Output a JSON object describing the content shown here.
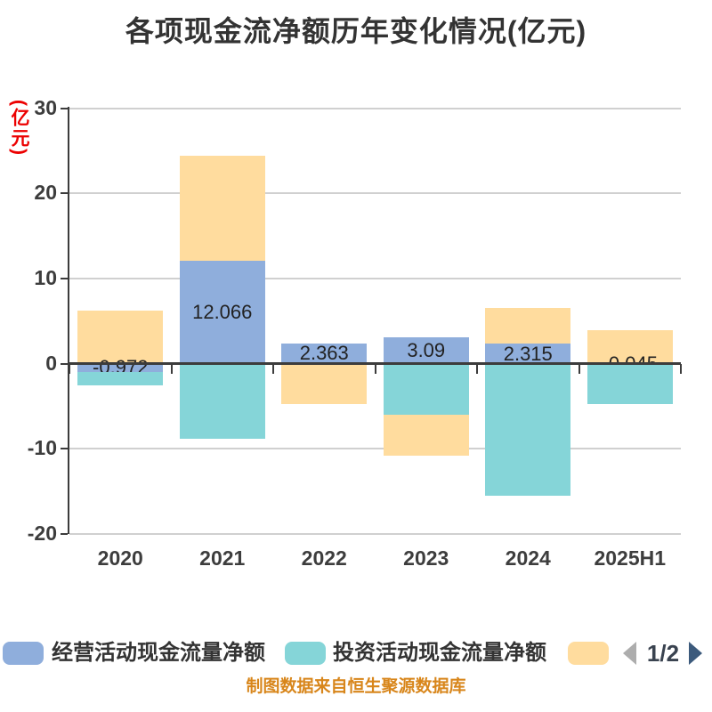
{
  "title": "各项现金流净额历年变化情况(亿元)",
  "y_axis_unit": "(亿元)",
  "footer_note": "制图数据来自恒生聚源数据库",
  "legend": {
    "items": [
      {
        "id": "operating-blue",
        "label": "经营活动现金流量净额",
        "color": "#8FAEDC"
      },
      {
        "id": "investing-teal",
        "label": "投资活动现金流量净额",
        "color": "#85D5D8"
      },
      {
        "id": "financing-orange",
        "label": "",
        "color": "#FFDC9E"
      }
    ],
    "pagination": {
      "current": "1/2",
      "prev_enabled": false,
      "next_enabled": true
    }
  },
  "chart_data": {
    "type": "bar",
    "stacked": true,
    "title": "各项现金流净额历年变化情况(亿元)",
    "categories": [
      "2020",
      "2021",
      "2022",
      "2023",
      "2024",
      "2025H1"
    ],
    "series": [
      {
        "id": "operating-blue",
        "color": "#8FAEDC",
        "values": [
          -0.972,
          12.066,
          2.363,
          3.09,
          2.315,
          -0.045
        ],
        "value_labels": [
          "-0.972",
          "12.066",
          "2.363",
          "3.09",
          "2.315",
          "-0.045"
        ]
      },
      {
        "id": "investing-teal",
        "color": "#85D5D8",
        "values": [
          -1.59,
          -8.77,
          0,
          -6.0,
          -15.5,
          -4.71
        ]
      },
      {
        "id": "financing-orange",
        "color": "#FFDC9E",
        "values": [
          6.22,
          12.35,
          -4.79,
          -4.8,
          4.25,
          3.95
        ]
      }
    ],
    "y_ticks": [
      30,
      20,
      10,
      0,
      -10,
      -20
    ],
    "ylim": [
      -20,
      30
    ],
    "grid": true,
    "legend_position": "bottom"
  },
  "colors": {
    "grid": "#d0d0d0",
    "axis": "#3c3c3c",
    "y_unit_label": "#ec0000",
    "footer": "#d8861b"
  }
}
